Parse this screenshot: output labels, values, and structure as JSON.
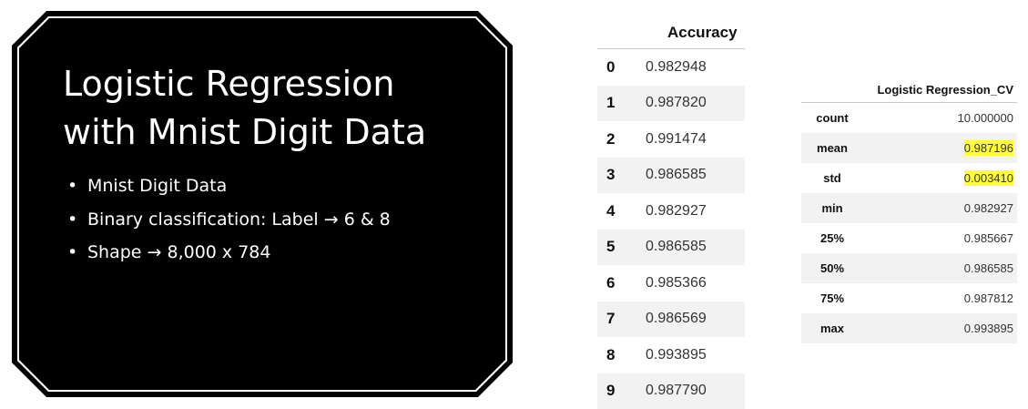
{
  "slide": {
    "title_line1": "Logistic Regression",
    "title_line2": "with Mnist Digit Data",
    "bullets": [
      "Mnist Digit Data",
      "Binary classification: Label → 6 & 8",
      "Shape → 8,000 x 784"
    ]
  },
  "accuracy_table": {
    "header": "Accuracy",
    "rows": [
      {
        "index": "0",
        "value": "0.982948"
      },
      {
        "index": "1",
        "value": "0.987820"
      },
      {
        "index": "2",
        "value": "0.991474"
      },
      {
        "index": "3",
        "value": "0.986585"
      },
      {
        "index": "4",
        "value": "0.982927"
      },
      {
        "index": "5",
        "value": "0.986585"
      },
      {
        "index": "6",
        "value": "0.985366"
      },
      {
        "index": "7",
        "value": "0.986569"
      },
      {
        "index": "8",
        "value": "0.993895"
      },
      {
        "index": "9",
        "value": "0.987790"
      }
    ]
  },
  "describe_table": {
    "header": "Logistic Regression_CV",
    "rows": [
      {
        "label": "count",
        "value": "10.000000"
      },
      {
        "label": "mean",
        "value": "0.987196"
      },
      {
        "label": "std",
        "value": "0.003410"
      },
      {
        "label": "min",
        "value": "0.982927"
      },
      {
        "label": "25%",
        "value": "0.985667"
      },
      {
        "label": "50%",
        "value": "0.986585"
      },
      {
        "label": "75%",
        "value": "0.987812"
      },
      {
        "label": "max",
        "value": "0.993895"
      }
    ],
    "highlight_color": "#ffff33"
  }
}
